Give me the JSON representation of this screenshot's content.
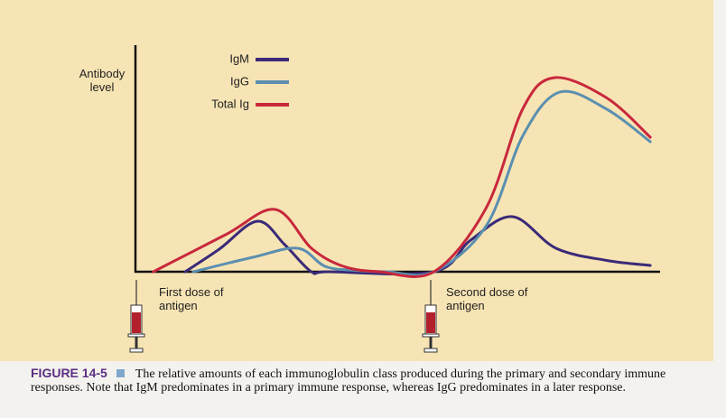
{
  "chart_data": {
    "type": "line",
    "ylabel": "Antibody level",
    "xlim": [
      0,
      100
    ],
    "ylim": [
      0,
      100
    ],
    "series": [
      {
        "name": "IgM",
        "color": "#3a2a78",
        "x": [
          9.5,
          16,
          23.3,
          28.5,
          33.6,
          37,
          57,
          64,
          72,
          80.3,
          90,
          98.3
        ],
        "values": [
          0,
          10,
          22.4,
          12,
          0,
          0,
          0,
          14,
          24.4,
          10.4,
          5,
          2.8
        ]
      },
      {
        "name": "IgG",
        "color": "#5b8fb0",
        "x": [
          11,
          22.4,
          31,
          36.2,
          42,
          48,
          57,
          67,
          74,
          81,
          90,
          98.3
        ],
        "values": [
          0,
          6.4,
          10.4,
          2.4,
          0.6,
          0,
          0,
          20.4,
          60.4,
          79.6,
          72,
          57.6
        ]
      },
      {
        "name": "Total Ig",
        "color": "#c8283c",
        "x": [
          3.4,
          17.2,
          26.7,
          33.6,
          39.7,
          46.6,
          57,
          67,
          74,
          80,
          90,
          98.3
        ],
        "values": [
          0,
          16.4,
          27.6,
          10.4,
          2.4,
          0,
          0,
          28.4,
          72.4,
          86,
          77,
          59.6
        ]
      }
    ],
    "annotations": [
      "First dose of antigen",
      "Second dose of antigen"
    ],
    "figure_label": "FIGURE 14-5",
    "caption": "The relative amounts of each immunoglobulin class produced during the primary and secondary immune responses. Note that IgM predominates in a primary immune response, whereas IgG predominates in a later response."
  }
}
